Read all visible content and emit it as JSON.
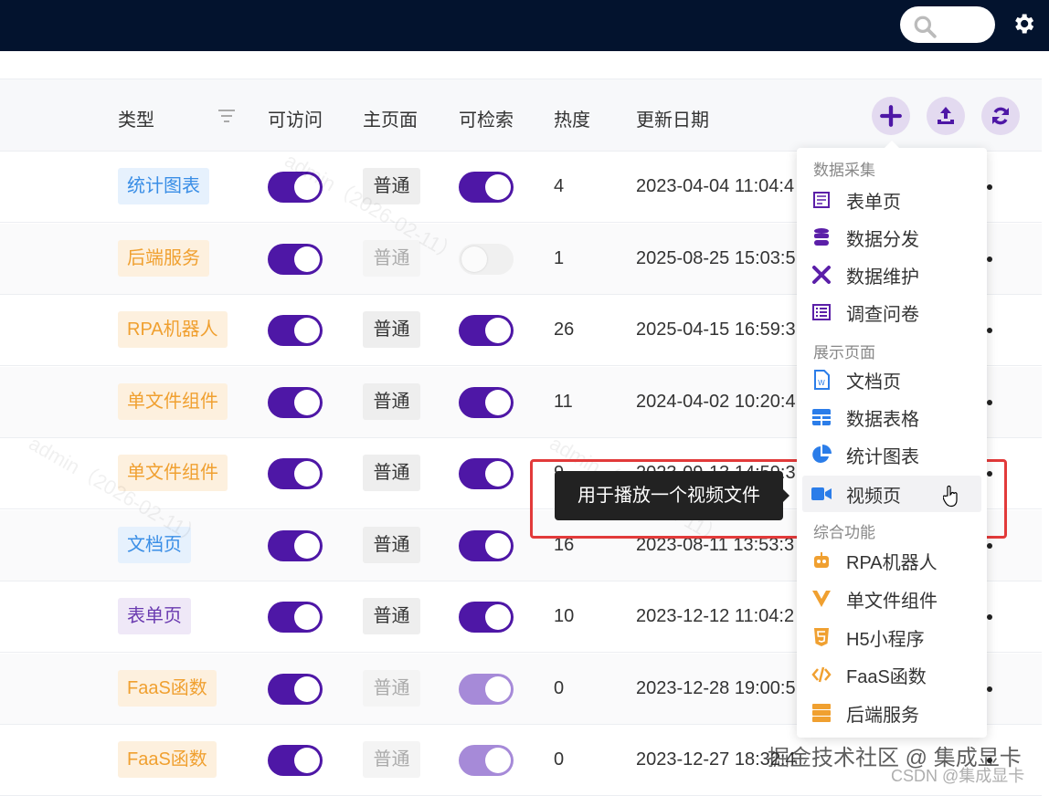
{
  "colors": {
    "topbar": "#03132e",
    "accent": "#4e17a6",
    "blue_tag": "#3a8ee6",
    "orange_tag": "#f0a030",
    "purple_tag": "#6a3ab0"
  },
  "topbar": {
    "search_icon": "search-icon",
    "settings_icon": "gear-icon"
  },
  "table": {
    "headers": {
      "type": "类型",
      "access": "可访问",
      "home": "主页面",
      "search": "可检索",
      "heat": "热度",
      "date": "更新日期"
    },
    "actions": [
      "add-icon",
      "upload-icon",
      "refresh-icon"
    ],
    "rows": [
      {
        "type": "统计图表",
        "tag": "blue",
        "access": true,
        "home": "普通",
        "home_disabled": false,
        "searchable": "on",
        "heat": "4",
        "date": "2023-04-04 11:04:4"
      },
      {
        "type": "后端服务",
        "tag": "orange",
        "access": true,
        "home": "普通",
        "home_disabled": true,
        "searchable": "off",
        "heat": "1",
        "date": "2025-08-25 15:03:5"
      },
      {
        "type": "RPA机器人",
        "tag": "orange",
        "access": true,
        "home": "普通",
        "home_disabled": false,
        "searchable": "on",
        "heat": "26",
        "date": "2025-04-15 16:59:3"
      },
      {
        "type": "单文件组件",
        "tag": "orange",
        "access": true,
        "home": "普通",
        "home_disabled": false,
        "searchable": "on",
        "heat": "11",
        "date": "2024-04-02 10:20:4"
      },
      {
        "type": "单文件组件",
        "tag": "orange",
        "access": true,
        "home": "普通",
        "home_disabled": false,
        "searchable": "on",
        "heat": "9",
        "date": "2023-09-13 14:59:3"
      },
      {
        "type": "文档页",
        "tag": "blue",
        "access": true,
        "home": "普通",
        "home_disabled": false,
        "searchable": "on",
        "heat": "16",
        "date": "2023-08-11 13:53:3"
      },
      {
        "type": "表单页",
        "tag": "purple",
        "access": true,
        "home": "普通",
        "home_disabled": false,
        "searchable": "on",
        "heat": "10",
        "date": "2023-12-12 11:04:2"
      },
      {
        "type": "FaaS函数",
        "tag": "orange",
        "access": true,
        "home": "普通",
        "home_disabled": true,
        "searchable": "light",
        "heat": "0",
        "date": "2023-12-28 19:00:5"
      },
      {
        "type": "FaaS函数",
        "tag": "orange",
        "access": true,
        "home": "普通",
        "home_disabled": true,
        "searchable": "light",
        "heat": "0",
        "date": "2023-12-27 18:32:48"
      }
    ]
  },
  "menu": {
    "groups": [
      {
        "label": "数据采集",
        "items": [
          {
            "label": "表单页",
            "icon": "form-icon",
            "color": "#5b1fa8"
          },
          {
            "label": "数据分发",
            "icon": "database-icon",
            "color": "#5b1fa8"
          },
          {
            "label": "数据维护",
            "icon": "tools-icon",
            "color": "#5b1fa8"
          },
          {
            "label": "调查问卷",
            "icon": "list-icon",
            "color": "#5b1fa8"
          }
        ]
      },
      {
        "label": "展示页面",
        "items": [
          {
            "label": "文档页",
            "icon": "word-file-icon",
            "color": "#2b7de9"
          },
          {
            "label": "数据表格",
            "icon": "table-icon",
            "color": "#2b7de9"
          },
          {
            "label": "统计图表",
            "icon": "pie-chart-icon",
            "color": "#2b7de9"
          },
          {
            "label": "视频页",
            "icon": "video-icon",
            "color": "#2b7de9"
          }
        ]
      },
      {
        "label": "综合功能",
        "items": [
          {
            "label": "RPA机器人",
            "icon": "robot-icon",
            "color": "#f0a030"
          },
          {
            "label": "单文件组件",
            "icon": "vue-icon",
            "color": "#f0a030"
          },
          {
            "label": "H5小程序",
            "icon": "html5-icon",
            "color": "#f0a030"
          },
          {
            "label": "FaaS函数",
            "icon": "code-icon",
            "color": "#f0a030"
          },
          {
            "label": "后端服务",
            "icon": "server-icon",
            "color": "#f0a030"
          }
        ]
      }
    ],
    "hovered": "视频页"
  },
  "tooltip": "用于播放一个视频文件",
  "watermarks": {
    "user": "admin（2026-02-11）",
    "juejin": "掘金技术社区 @ 集成显卡",
    "csdn": "CSDN @集成显卡"
  }
}
